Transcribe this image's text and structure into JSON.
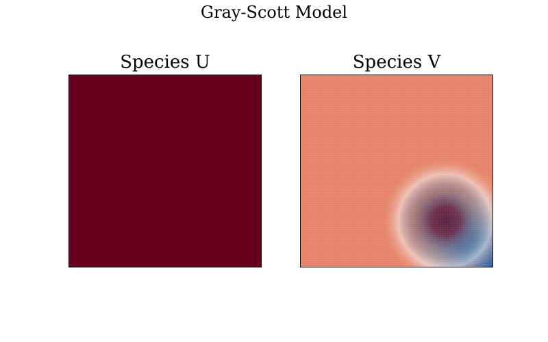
{
  "chart_data": {
    "type": "heatmap",
    "title": "Gray-Scott Model",
    "panels": [
      {
        "title": "Species U",
        "colormap": "RdBu",
        "field": "uniform",
        "fill_color": "#67001f"
      },
      {
        "title": "Species V",
        "colormap": "RdBu",
        "field": "spot",
        "background_color": "#e8856a",
        "spot_center": [
          0.75,
          0.75
        ],
        "colors": {
          "spot_core": "#5e2447",
          "spot_ring": "#1f5d96",
          "corner": "#2166ac",
          "halo": "#f7f7f7"
        }
      }
    ]
  }
}
